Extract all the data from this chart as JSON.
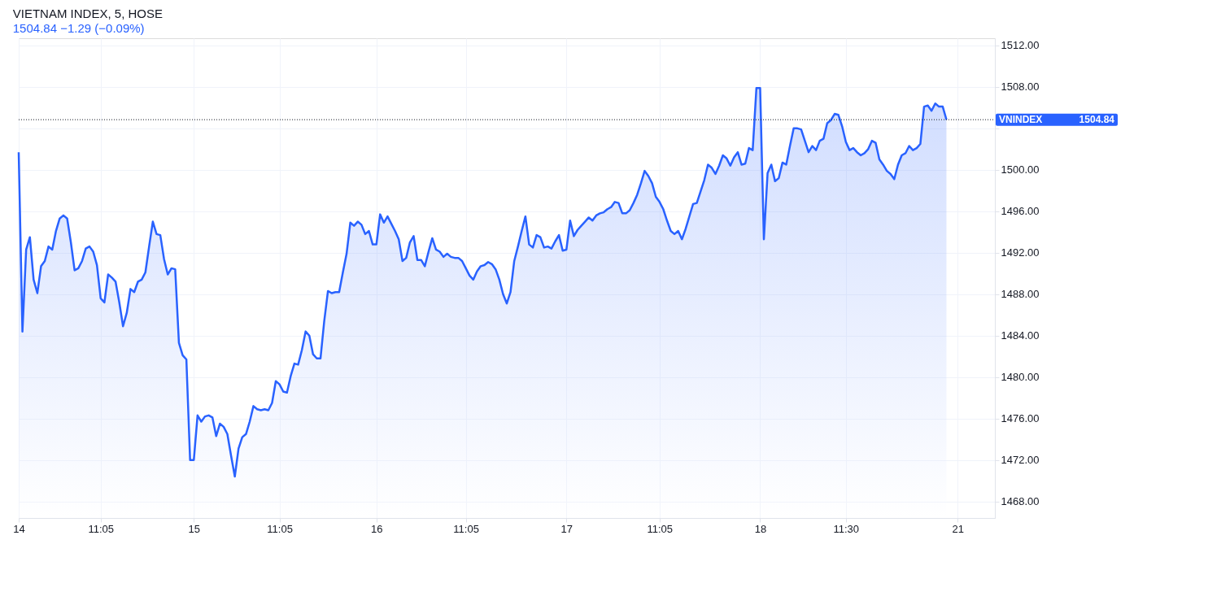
{
  "chart_data": {
    "type": "area",
    "title": "VIETNAM INDEX, 5, HOSE",
    "subtitle": "1504.84 −1.29 (−0.09%)",
    "categories": [
      "14",
      null,
      null,
      null,
      null,
      null,
      null,
      null,
      null,
      null,
      null,
      null,
      null,
      null,
      null,
      null,
      null,
      null,
      null,
      null,
      null,
      null,
      "11:05",
      null,
      null,
      null,
      null,
      null,
      null,
      null,
      null,
      null,
      null,
      null,
      null,
      null,
      null,
      null,
      null,
      null,
      null,
      null,
      null,
      null,
      null,
      null,
      null,
      "15",
      null,
      null,
      null,
      null,
      null,
      null,
      null,
      null,
      null,
      null,
      null,
      null,
      null,
      null,
      null,
      null,
      null,
      null,
      null,
      null,
      null,
      null,
      "11:05",
      null,
      null,
      null,
      null,
      null,
      null,
      null,
      null,
      null,
      null,
      null,
      null,
      null,
      null,
      null,
      null,
      null,
      null,
      null,
      null,
      null,
      null,
      null,
      null,
      null,
      "16",
      null,
      null,
      null,
      null,
      null,
      null,
      null,
      null,
      null,
      null,
      null,
      null,
      null,
      null,
      null,
      null,
      null,
      null,
      null,
      null,
      null,
      null,
      null,
      "11:05",
      null,
      null,
      null,
      null,
      null,
      null,
      null,
      null,
      null,
      null,
      null,
      null,
      null,
      null,
      null,
      null,
      null,
      null,
      null,
      null,
      null,
      null,
      null,
      null,
      null,
      null,
      "17",
      null,
      null,
      null,
      null,
      null,
      null,
      null,
      null,
      null,
      null,
      null,
      null,
      null,
      null,
      null,
      null,
      null,
      null,
      null,
      null,
      null,
      null,
      null,
      null,
      "11:05",
      null,
      null,
      null,
      null,
      null,
      null,
      null,
      null,
      null,
      null,
      null,
      null,
      null,
      null,
      null,
      null,
      null,
      null,
      null,
      null,
      null,
      null,
      null,
      null,
      null,
      null,
      "18",
      null,
      null,
      null,
      null,
      null,
      null,
      null,
      null,
      null,
      null,
      null,
      null,
      null,
      null,
      null,
      null,
      null,
      null,
      null,
      null,
      null,
      null,
      "11:30",
      null,
      null,
      null,
      null,
      null,
      null,
      null,
      null,
      null,
      null,
      null,
      null,
      null,
      null,
      null,
      null,
      null,
      null,
      null,
      null,
      null,
      null,
      null,
      null,
      null,
      null,
      null,
      null,
      null,
      "21",
      null,
      null,
      null,
      null,
      null,
      null,
      null,
      null,
      null,
      null
    ],
    "series": [
      {
        "color": "#2962ff",
        "values": [
          1501.7,
          1484.4,
          1492.3,
          1493.5,
          1489.4,
          1488.1,
          1490.7,
          1491.2,
          1492.6,
          1492.3,
          1494.1,
          1495.3,
          1495.6,
          1495.3,
          1493.0,
          1490.3,
          1490.5,
          1491.2,
          1492.4,
          1492.6,
          1492.1,
          1490.8,
          1487.6,
          1487.2,
          1489.9,
          1489.6,
          1489.2,
          1487.2,
          1484.9,
          1486.2,
          1488.5,
          1488.2,
          1489.2,
          1489.4,
          1490.1,
          1492.6,
          1495.0,
          1493.8,
          1493.7,
          1491.4,
          1489.9,
          1490.5,
          1490.4,
          1483.3,
          1482.1,
          1481.7,
          1472.0,
          1472.0,
          1476.3,
          1475.7,
          1476.2,
          1476.3,
          1476.1,
          1474.3,
          1475.5,
          1475.2,
          1474.5,
          1472.4,
          1470.4,
          1473.1,
          1474.2,
          1474.5,
          1475.7,
          1477.2,
          1476.9,
          1476.8,
          1476.9,
          1476.8,
          1477.5,
          1479.6,
          1479.3,
          1478.6,
          1478.5,
          1480.1,
          1481.3,
          1481.2,
          1482.6,
          1484.4,
          1484.0,
          1482.2,
          1481.8,
          1481.8,
          1485.4,
          1488.3,
          1488.1,
          1488.2,
          1488.2,
          1490.1,
          1491.9,
          1494.9,
          1494.6,
          1495.0,
          1494.7,
          1493.8,
          1494.1,
          1492.8,
          1492.8,
          1495.7,
          1494.9,
          1495.5,
          1494.8,
          1494.1,
          1493.3,
          1491.2,
          1491.5,
          1493.0,
          1493.6,
          1491.3,
          1491.3,
          1490.7,
          1492.1,
          1493.4,
          1492.3,
          1492.1,
          1491.6,
          1491.9,
          1491.6,
          1491.5,
          1491.5,
          1491.2,
          1490.5,
          1489.8,
          1489.4,
          1490.2,
          1490.7,
          1490.8,
          1491.1,
          1490.9,
          1490.4,
          1489.4,
          1488.0,
          1487.1,
          1488.2,
          1491.2,
          1492.6,
          1494.1,
          1495.5,
          1492.8,
          1492.5,
          1493.7,
          1493.5,
          1492.5,
          1492.6,
          1492.4,
          1493.1,
          1493.7,
          1492.2,
          1492.3,
          1495.1,
          1493.6,
          1494.2,
          1494.6,
          1495.0,
          1495.4,
          1495.1,
          1495.6,
          1495.8,
          1495.9,
          1496.2,
          1496.4,
          1496.9,
          1496.8,
          1495.8,
          1495.8,
          1496.1,
          1496.8,
          1497.6,
          1498.7,
          1499.9,
          1499.4,
          1498.7,
          1497.4,
          1496.9,
          1496.2,
          1495.1,
          1494.1,
          1493.8,
          1494.1,
          1493.3,
          1494.3,
          1495.5,
          1496.7,
          1496.8,
          1497.9,
          1499.0,
          1500.5,
          1500.2,
          1499.6,
          1500.4,
          1501.4,
          1501.1,
          1500.4,
          1501.2,
          1501.7,
          1500.5,
          1500.6,
          1502.1,
          1501.9,
          1507.9,
          1507.9,
          1493.3,
          1499.7,
          1500.5,
          1498.9,
          1499.2,
          1500.7,
          1500.5,
          1502.3,
          1504.0,
          1504.0,
          1503.9,
          1502.8,
          1501.7,
          1502.3,
          1501.9,
          1502.8,
          1503.0,
          1504.5,
          1504.8,
          1505.4,
          1505.3,
          1504.2,
          1502.7,
          1501.9,
          1502.1,
          1501.7,
          1501.4,
          1501.6,
          1502.0,
          1502.8,
          1502.6,
          1501.0,
          1500.5,
          1499.9,
          1499.6,
          1499.1,
          1500.5,
          1501.4,
          1501.6,
          1502.3,
          1501.9,
          1502.1,
          1502.5,
          1506.1,
          1506.2,
          1505.7,
          1506.4,
          1506.1,
          1506.1,
          1504.84,
          null,
          null,
          null,
          null,
          null,
          null,
          null,
          null,
          null,
          null,
          null,
          null,
          null
        ]
      }
    ],
    "ylim": [
      1466.4,
      1512.7
    ],
    "yticks": [
      {
        "value": 1468,
        "label": "1468.00"
      },
      {
        "value": 1472,
        "label": "1472.00"
      },
      {
        "value": 1476,
        "label": "1476.00"
      },
      {
        "value": 1480,
        "label": "1480.00"
      },
      {
        "value": 1484,
        "label": "1484.00"
      },
      {
        "value": 1488,
        "label": "1488.00"
      },
      {
        "value": 1492,
        "label": "1492.00"
      },
      {
        "value": 1496,
        "label": "1496.00"
      },
      {
        "value": 1500,
        "label": "1500.00"
      },
      {
        "value": 1504,
        "label": null
      },
      {
        "value": 1508,
        "label": "1508.00"
      },
      {
        "value": 1512,
        "label": "1512.00"
      }
    ],
    "ref_lines": [
      {
        "axis": "y",
        "value": 1504.84,
        "label": "VNINDEX",
        "color": "#131722",
        "line_style": "dotted"
      }
    ],
    "annotations": [
      "1504.84"
    ],
    "grid": true
  }
}
